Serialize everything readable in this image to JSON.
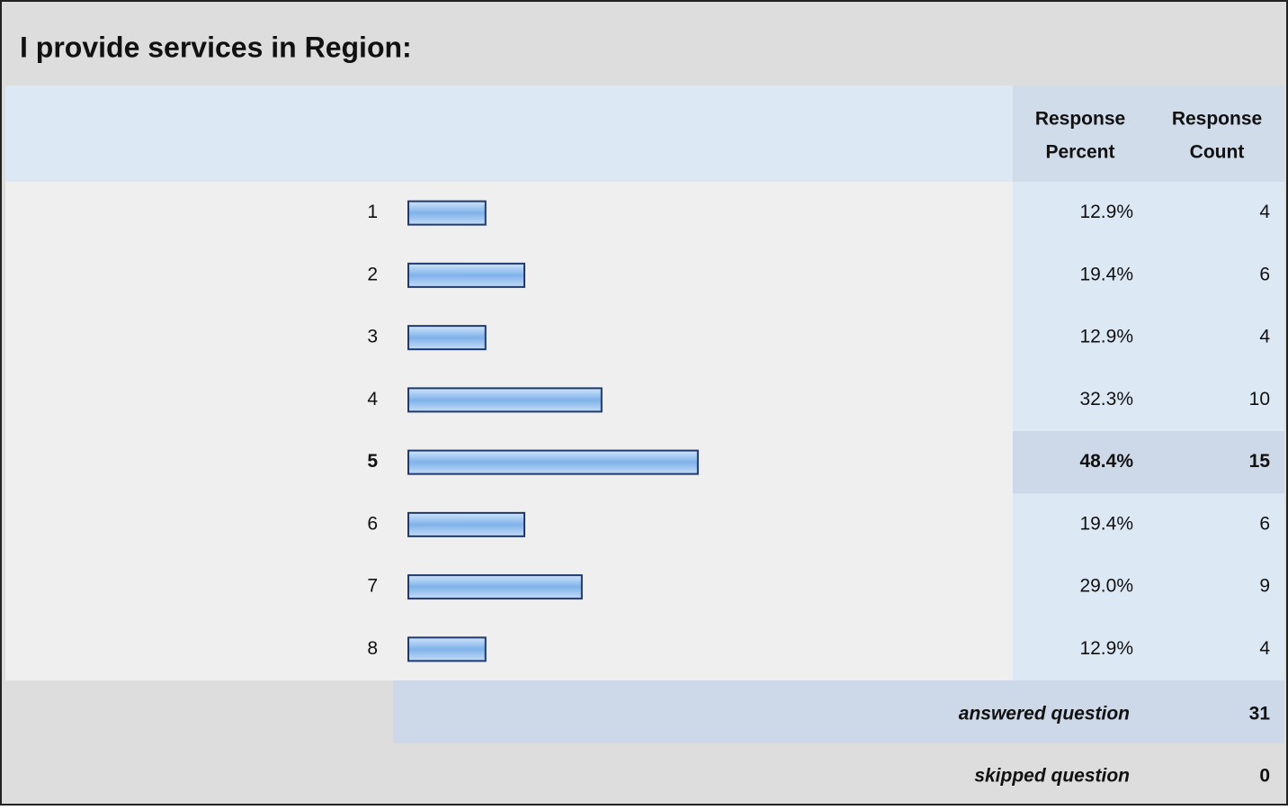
{
  "chart_data": {
    "type": "bar",
    "title": "I provide services in Region:",
    "column_headers": [
      [
        "Response",
        "Percent"
      ],
      [
        "Response",
        "Count"
      ]
    ],
    "categories": [
      "1",
      "2",
      "3",
      "4",
      "5",
      "6",
      "7",
      "8"
    ],
    "values": [
      12.9,
      19.4,
      12.9,
      32.3,
      48.4,
      19.4,
      29.0,
      12.9
    ],
    "value_labels": [
      "12.9%",
      "19.4%",
      "12.9%",
      "32.3%",
      "48.4%",
      "19.4%",
      "29.0%",
      "12.9%"
    ],
    "counts": [
      4,
      6,
      4,
      10,
      15,
      6,
      9,
      4
    ],
    "highlight_index": 4,
    "color": "#8dbdf0",
    "answered_label": "answered question",
    "answered": 31,
    "skipped_label": "skipped question",
    "skipped": 0
  }
}
